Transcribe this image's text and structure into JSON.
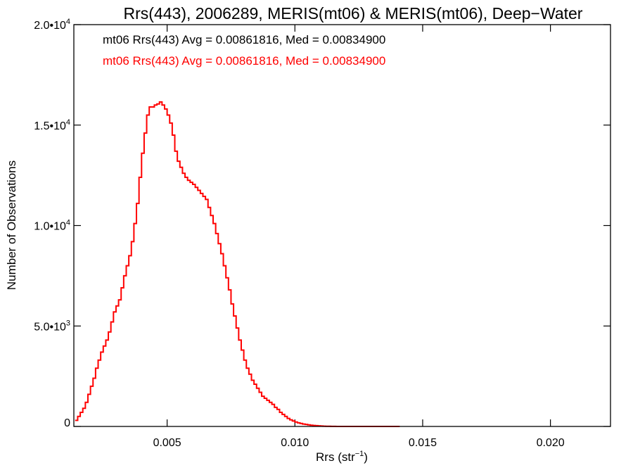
{
  "chart_data": {
    "type": "histogram-step",
    "title": "Rrs(443), 2006289, MERIS(mt06) & MERIS(mt06), Deep−Water",
    "xlabel_main": "Rrs (str",
    "xlabel_sup": "−1",
    "xlabel_end": ")",
    "ylabel": "Number of Observations",
    "xlim": [
      0.00135,
      0.02235
    ],
    "ylim": [
      0,
      20000
    ],
    "xticks": [
      {
        "value": 0.005,
        "label": "0.005"
      },
      {
        "value": 0.01,
        "label": "0.010"
      },
      {
        "value": 0.015,
        "label": "0.015"
      },
      {
        "value": 0.02,
        "label": "0.020"
      }
    ],
    "yticks": [
      {
        "value": 0,
        "mantissa": "0",
        "exponent": ""
      },
      {
        "value": 5000,
        "mantissa": "5.0•10",
        "exponent": "3"
      },
      {
        "value": 10000,
        "mantissa": "1.0•10",
        "exponent": "4"
      },
      {
        "value": 15000,
        "mantissa": "1.5•10",
        "exponent": "4"
      },
      {
        "value": 20000,
        "mantissa": "2.0•10",
        "exponent": "4"
      }
    ],
    "annotations": [
      {
        "text": "mt06 Rrs(443) Avg = 0.00861816, Med = 0.00834900",
        "color": "#000000"
      },
      {
        "text": "mt06 Rrs(443) Avg = 0.00861816, Med = 0.00834900",
        "color": "#ff0000"
      }
    ],
    "series": [
      {
        "color": "#ff0000",
        "bin_start": 0.0014,
        "bin_width": 0.0001,
        "values": [
          300,
          500,
          700,
          900,
          1200,
          1600,
          2000,
          2400,
          2900,
          3300,
          3700,
          4000,
          4300,
          4700,
          5200,
          5700,
          6000,
          6300,
          6900,
          7500,
          8000,
          8500,
          9200,
          10100,
          11100,
          12400,
          13600,
          14600,
          15500,
          15900,
          15900,
          16000,
          16050,
          16150,
          16000,
          15800,
          15500,
          15100,
          14500,
          13700,
          13200,
          12900,
          12600,
          12400,
          12250,
          12150,
          12050,
          11900,
          11750,
          11600,
          11450,
          11300,
          10900,
          10500,
          10100,
          9600,
          9100,
          8600,
          8000,
          7400,
          6800,
          6100,
          5500,
          4900,
          4300,
          3800,
          3300,
          2900,
          2600,
          2300,
          2100,
          1900,
          1700,
          1500,
          1400,
          1300,
          1200,
          1100,
          950,
          850,
          700,
          600,
          500,
          400,
          330,
          270,
          220,
          180,
          150,
          120,
          100,
          80,
          60,
          50,
          40,
          30,
          20,
          15,
          10,
          8,
          5,
          3,
          2,
          1,
          1,
          1,
          0,
          0,
          0,
          0,
          0,
          0,
          0,
          0,
          0,
          0,
          0,
          0,
          0,
          0,
          0,
          0,
          0,
          0,
          0,
          0,
          0
        ]
      }
    ]
  }
}
